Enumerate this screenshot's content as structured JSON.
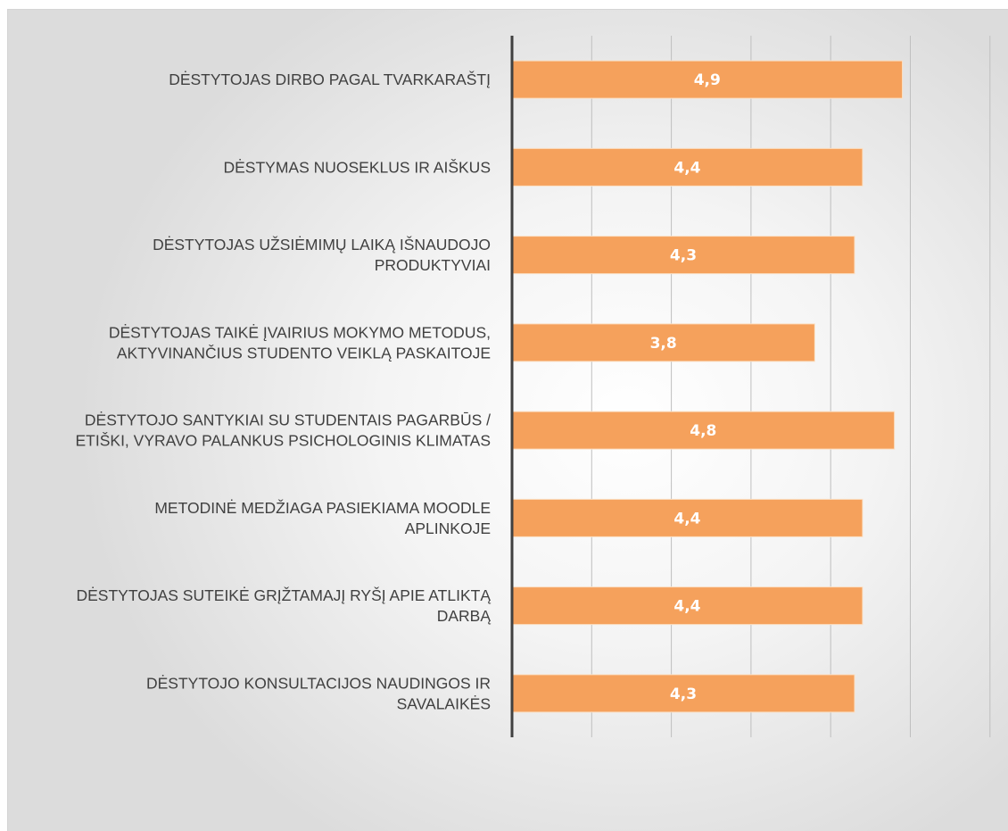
{
  "chart_data": {
    "type": "bar",
    "orientation": "horizontal",
    "categories": [
      [
        "DĖSTYTOJAS DIRBO PAGAL TVARKARAŠTĮ"
      ],
      [
        "DĖSTYMAS NUOSEKLUS IR AIŠKUS"
      ],
      [
        "DĖSTYTOJAS UŽSIĖMIMŲ LAIKĄ IŠNAUDOJO",
        "PRODUKTYVIAI"
      ],
      [
        "DĖSTYTOJAS TAIKĖ ĮVAIRIUS MOKYMO METODUS,",
        "AKTYVINANČIUS STUDENTO VEIKLĄ PASKAITOJE"
      ],
      [
        "DĖSTYTOJO SANTYKIAI SU STUDENTAIS PAGARBŪS /",
        "ETIŠKI, VYRAVO PALANKUS PSICHOLOGINIS KLIMATAS"
      ],
      [
        "METODINĖ MEDŽIAGA PASIEKIAMA MOODLE",
        "APLINKOJE"
      ],
      [
        "DĖSTYTOJAS SUTEIKĖ GRĮŽTAMAJĮ RYŠĮ APIE ATLIKTĄ",
        "DARBĄ"
      ],
      [
        "DĖSTYTOJO KONSULTACIJOS NAUDINGOS IR",
        "SAVALAIKĖS"
      ]
    ],
    "values": [
      4.9,
      4.4,
      4.3,
      3.8,
      4.8,
      4.4,
      4.4,
      4.3
    ],
    "value_labels": [
      "4,9",
      "4,4",
      "4,3",
      "3,8",
      "4,8",
      "4,4",
      "4,4",
      "4,3"
    ],
    "xlim": [
      0,
      6
    ],
    "grid": true,
    "bar_color": "#f5a15c",
    "title": "",
    "xlabel": "",
    "ylabel": ""
  }
}
